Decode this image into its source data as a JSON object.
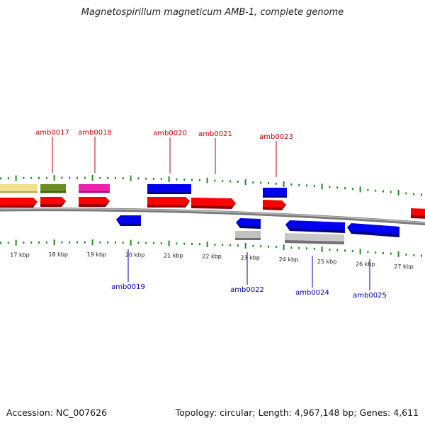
{
  "title": "Magnetospirillum magneticum AMB-1, complete genome",
  "footer": {
    "accession": "Accession: NC_007626",
    "summary": "Topology: circular; Length: 4,967,148 bp; Genes: 4,611"
  },
  "colors": {
    "forward_label": "#cc0000",
    "reverse_label": "#0000aa",
    "tick": "#228822",
    "backbone": "#808080",
    "cds": "#ff0000",
    "blue_feature": "#0000ee",
    "gray_feature": "#c0c0c0",
    "khaki_feature": "#f0e090",
    "olive_feature": "#6b8e23",
    "magenta_feature": "#ee22aa"
  },
  "scale_labels": [
    "17 kbp",
    "18 kbp",
    "19 kbp",
    "20 kbp",
    "21 kbp",
    "22 kbp",
    "23 kbp",
    "24 kbp",
    "25 kbp",
    "26 kbp",
    "27 kbp"
  ],
  "forward_genes": [
    {
      "name": "amb0017"
    },
    {
      "name": "amb0018"
    },
    {
      "name": "amb0020"
    },
    {
      "name": "amb0021"
    },
    {
      "name": "amb0023"
    }
  ],
  "reverse_genes": [
    {
      "name": "amb0019"
    },
    {
      "name": "amb0022"
    },
    {
      "name": "amb0024"
    },
    {
      "name": "amb0025"
    }
  ]
}
